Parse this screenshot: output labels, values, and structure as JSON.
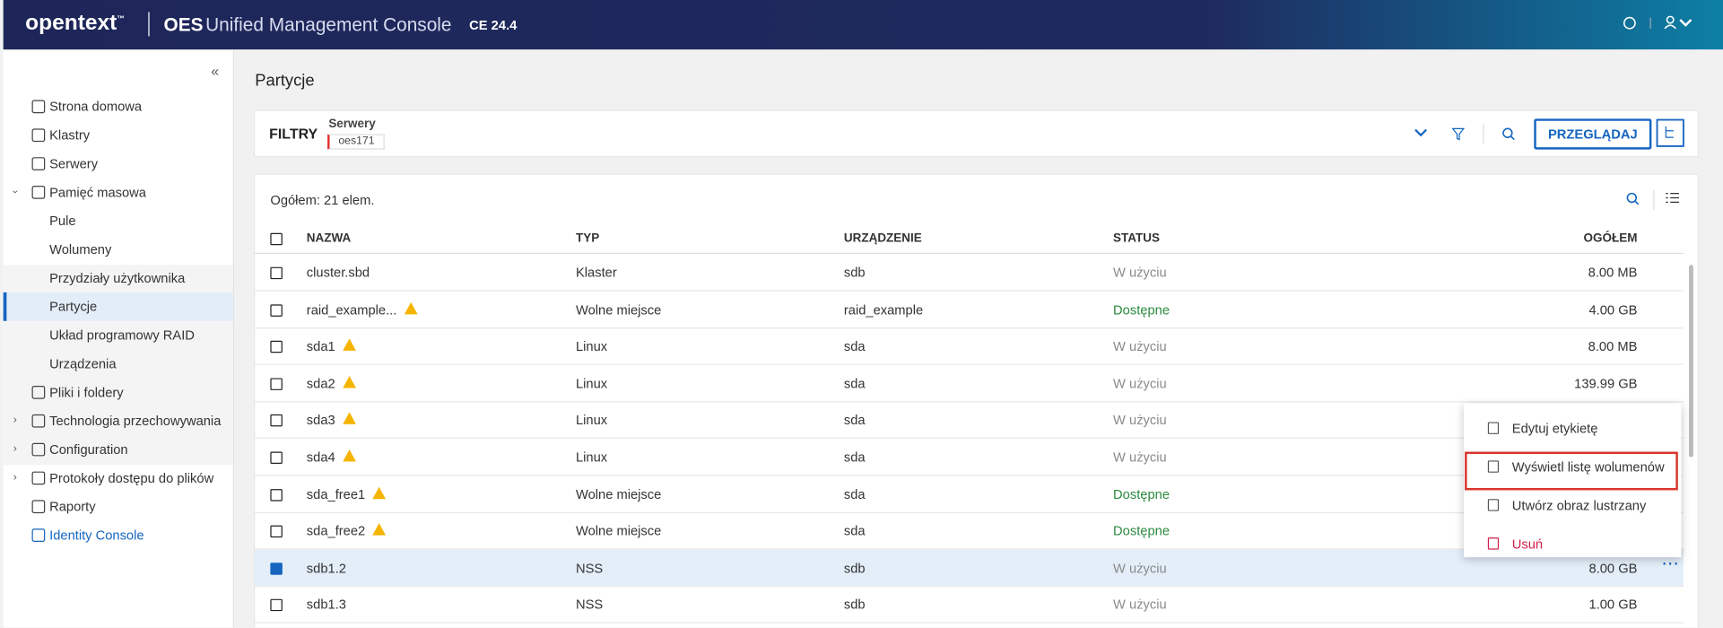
{
  "header": {
    "brand": "opentext",
    "brand_mark": "™",
    "title_prefix": "OES",
    "title": "Unified Management Console",
    "version": "CE 24.4"
  },
  "sidebar": {
    "collapse": "«",
    "items": [
      {
        "label": "Strona domowa",
        "level": 0
      },
      {
        "label": "Klastry",
        "level": 0
      },
      {
        "label": "Serwery",
        "level": 0
      },
      {
        "label": "Pamięć masowa",
        "level": 0,
        "expander": "open"
      },
      {
        "label": "Pule",
        "level": 1
      },
      {
        "label": "Wolumeny",
        "level": 1
      },
      {
        "label": "Przydziały użytkownika",
        "level": 1
      },
      {
        "label": "Partycje",
        "level": 1,
        "selected": true
      },
      {
        "label": "Układ programowy RAID",
        "level": 1
      },
      {
        "label": "Urządzenia",
        "level": 1
      },
      {
        "label": "Pliki i foldery",
        "level": 0
      },
      {
        "label": "Technologia przechowywania",
        "level": 0,
        "expander": "closed"
      },
      {
        "label": "Configuration",
        "level": 0,
        "expander": "closed"
      },
      {
        "label": "Protokoły dostępu do plików",
        "level": 0,
        "expander": "closed"
      },
      {
        "label": "Raporty",
        "level": 0
      },
      {
        "label": "Identity Console",
        "level": 0,
        "link": true
      }
    ]
  },
  "page_title": "Partycje",
  "filters": {
    "label": "FILTRY",
    "filter_name": "Serwery",
    "chip": "oes171",
    "button": "PRZEGLĄDAJ"
  },
  "table": {
    "total": "Ogółem: 21 elem.",
    "columns": [
      "NAZWA",
      "TYP",
      "URZĄDZENIE",
      "STATUS",
      "OGÓŁEM"
    ],
    "rows": [
      {
        "name": "cluster.sbd",
        "type": "Klaster",
        "device": "sdb",
        "status": "W użyciu",
        "status_color": "#8a8a8a",
        "total": "8.00 MB"
      },
      {
        "name": "raid_example...",
        "warning": true,
        "type": "Wolne miejsce",
        "device": "raid_example",
        "status": "Dostępne",
        "status_color": "#2a8a3e",
        "total": "4.00 GB"
      },
      {
        "name": "sda1",
        "warning": true,
        "type": "Linux",
        "device": "sda",
        "status": "W użyciu",
        "status_color": "#8a8a8a",
        "total": "8.00 MB"
      },
      {
        "name": "sda2",
        "warning": true,
        "type": "Linux",
        "device": "sda",
        "status": "W użyciu",
        "status_color": "#8a8a8a",
        "total": "139.99 GB"
      },
      {
        "name": "sda3",
        "warning": true,
        "type": "Linux",
        "device": "sda",
        "status": "W użyciu",
        "status_color": "#8a8a8a",
        "total": ""
      },
      {
        "name": "sda4",
        "warning": true,
        "type": "Linux",
        "device": "sda",
        "status": "W użyciu",
        "status_color": "#8a8a8a",
        "total": ""
      },
      {
        "name": "sda_free1",
        "warning": true,
        "type": "Wolne miejsce",
        "device": "sda",
        "status": "Dostępne",
        "status_color": "#2a8a3e",
        "total": ""
      },
      {
        "name": "sda_free2",
        "warning": true,
        "type": "Wolne miejsce",
        "device": "sda",
        "status": "Dostępne",
        "status_color": "#2a8a3e",
        "total": ""
      },
      {
        "name": "sdb1.2",
        "type": "NSS",
        "device": "sdb",
        "status": "W użyciu",
        "status_color": "#8a8a8a",
        "total": "8.00 GB",
        "selected": true
      },
      {
        "name": "sdb1.3",
        "type": "NSS",
        "device": "sdb",
        "status": "W użyciu",
        "status_color": "#8a8a8a",
        "total": "1.00 GB"
      }
    ]
  },
  "context_menu": [
    {
      "label": "Edytuj etykietę"
    },
    {
      "label": "Wyświetl listę wolumenów",
      "highlighted": true
    },
    {
      "label": "Utwórz obraz lustrzany"
    },
    {
      "label": "Usuń",
      "color": "#d0204a"
    }
  ]
}
